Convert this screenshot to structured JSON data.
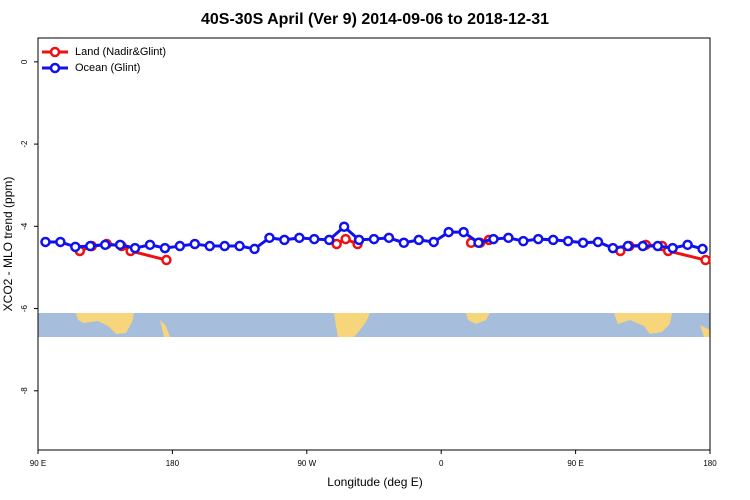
{
  "chart_data": {
    "type": "line",
    "title": "40S-30S April (Ver 9)   2014-09-06 to 2018-12-31",
    "x_label": "Longitude (deg E)",
    "y_label": "XCO2 - MLO trend (ppm)",
    "xlim": [
      90,
      540
    ],
    "xticks": [
      {
        "value": 90,
        "label": "90 E"
      },
      180,
      {
        "value": 270,
        "label": "90 W"
      },
      {
        "value": 360,
        "label": "0"
      },
      {
        "value": 450,
        "label": "90 E"
      },
      {
        "value": 540,
        "label": "180"
      }
    ],
    "ylim": [
      -9.44,
      0.58
    ],
    "yticks": [
      0,
      -2,
      -4,
      -6,
      -8
    ],
    "legend": "top-left",
    "series": [
      {
        "name": "Land (Nadir&Glint)",
        "color": "#ee1111",
        "x": [
          118,
          126,
          136,
          146,
          152,
          176,
          null,
          290,
          296,
          304,
          null,
          380,
          386,
          392,
          null,
          480,
          486,
          497,
          508,
          512,
          537
        ],
        "values": [
          -4.6,
          -4.48,
          -4.43,
          -4.48,
          -4.6,
          -4.82,
          null,
          -4.43,
          -4.31,
          -4.43,
          null,
          -4.4,
          -4.4,
          -4.33,
          null,
          -4.6,
          -4.48,
          -4.45,
          -4.48,
          -4.6,
          -4.82
        ]
      },
      {
        "name": "Ocean (Glint)",
        "color": "#1111ee",
        "x": [
          95,
          105,
          115,
          125,
          135,
          145,
          155,
          165,
          175,
          185,
          195,
          205,
          215,
          225,
          235,
          245,
          255,
          265,
          275,
          285,
          295,
          305,
          315,
          325,
          335,
          345,
          355,
          365,
          375,
          385,
          395,
          405,
          415,
          425,
          435,
          445,
          455,
          465,
          475,
          485,
          495,
          505,
          515,
          525,
          535
        ],
        "values": [
          -4.38,
          -4.38,
          -4.5,
          -4.48,
          -4.45,
          -4.45,
          -4.53,
          -4.45,
          -4.53,
          -4.48,
          -4.43,
          -4.48,
          -4.48,
          -4.48,
          -4.55,
          -4.28,
          -4.33,
          -4.28,
          -4.31,
          -4.33,
          -4.01,
          -4.33,
          -4.31,
          -4.28,
          -4.4,
          -4.33,
          -4.38,
          -4.14,
          -4.14,
          -4.4,
          -4.31,
          -4.28,
          -4.36,
          -4.31,
          -4.33,
          -4.36,
          -4.4,
          -4.38,
          -4.53,
          -4.48,
          -4.48,
          -4.48,
          -4.53,
          -4.45,
          -4.55
        ]
      }
    ]
  }
}
